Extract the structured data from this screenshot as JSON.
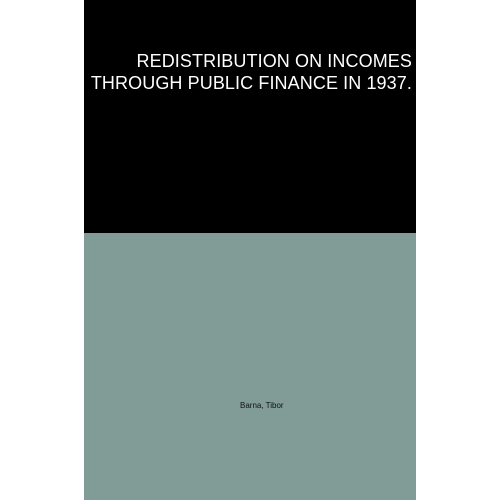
{
  "book": {
    "title": "REDISTRIBUTION ON INCOMES THROUGH PUBLIC FINANCE IN 1937.",
    "author": "Barna, Tibor"
  },
  "colors": {
    "top_panel": "#000000",
    "bottom_panel": "#819c96",
    "title_text": "#ffffff",
    "author_text": "#111111",
    "background": "#ffffff"
  }
}
